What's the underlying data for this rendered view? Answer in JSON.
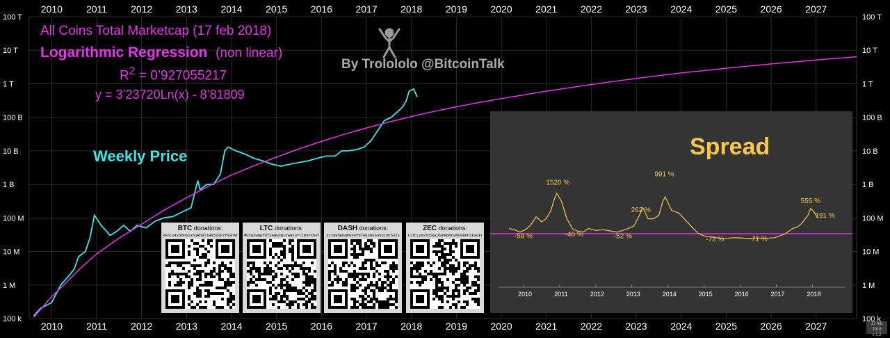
{
  "chart_data": [
    {
      "type": "line",
      "title_lines": [
        "All Coins Total Marketcap   (17 feb 2018)",
        "Logarithmic Regression",
        "(non linear)"
      ],
      "r_squared_prefix": "R",
      "r_squared_exp": "2",
      "r_squared_value": " = 0’927055217",
      "equation": "y = 3’23720Ln(x) - 8’81809",
      "credit": "By Trolololo  @BitcoinTalk",
      "weekly_label": "Weekly Price",
      "y_scale": "log",
      "y_ticks": [
        "100 k",
        "1 M",
        "10 M",
        "100 M",
        "1 B",
        "10 B",
        "100 B",
        "1 T",
        "10 T",
        "100 T"
      ],
      "y_tick_values": [
        100000.0,
        1000000.0,
        10000000.0,
        100000000.0,
        1000000000.0,
        10000000000.0,
        100000000000.0,
        1000000000000.0,
        10000000000000.0,
        100000000000000.0
      ],
      "x_ticks": [
        "2010",
        "2011",
        "2012",
        "2013",
        "2014",
        "2015",
        "2016",
        "2017",
        "2018",
        "2019",
        "2020",
        "2021",
        "2022",
        "2023",
        "2024",
        "2025",
        "2026",
        "2027"
      ],
      "x_range": [
        2009.5,
        2027.9
      ],
      "ylim": [
        100000.0,
        100000000000000.0
      ],
      "series": [
        {
          "color": "#3ee6e6",
          "x": [
            2009.6,
            2009.75,
            2010.0,
            2010.2,
            2010.4,
            2010.5,
            2010.6,
            2010.75,
            2010.85,
            2010.95,
            2011.1,
            2011.3,
            2011.45,
            2011.6,
            2011.75,
            2011.9,
            2012.1,
            2012.3,
            2012.5,
            2012.7,
            2012.9,
            2013.1,
            2013.25,
            2013.3,
            2013.45,
            2013.6,
            2013.75,
            2013.85,
            2013.92,
            2014.1,
            2014.3,
            2014.5,
            2014.7,
            2014.9,
            2015.1,
            2015.3,
            2015.5,
            2015.7,
            2015.9,
            2016.1,
            2016.3,
            2016.45,
            2016.6,
            2016.8,
            2016.95,
            2017.1,
            2017.25,
            2017.4,
            2017.55,
            2017.7,
            2017.8,
            2017.88,
            2017.95,
            2018.05,
            2018.13
          ],
          "y": [
            120000.0,
            200000.0,
            300000.0,
            1000000.0,
            2000000.0,
            3000000.0,
            7000000.0,
            10000000.0,
            25000000.0,
            120000000.0,
            60000000.0,
            30000000.0,
            40000000.0,
            60000000.0,
            40000000.0,
            60000000.0,
            50000000.0,
            80000000.0,
            100000000.0,
            110000000.0,
            150000000.0,
            200000000.0,
            1300000000.0,
            700000000.0,
            1000000000.0,
            1000000000.0,
            2000000000.0,
            10000000000.0,
            13000000000.0,
            10000000000.0,
            8000000000.0,
            6000000000.0,
            5000000000.0,
            4000000000.0,
            3500000000.0,
            4000000000.0,
            4500000000.0,
            5000000000.0,
            6000000000.0,
            7000000000.0,
            7000000000.0,
            10000000000.0,
            10000000000.0,
            11000000000.0,
            13000000000.0,
            20000000000.0,
            40000000000.0,
            80000000000.0,
            100000000000.0,
            150000000000.0,
            200000000000.0,
            300000000000.0,
            600000000000.0,
            700000000000.0,
            400000000000.0
          ]
        },
        {
          "color": "#e535e8",
          "x": [
            2009.6,
            2009.8,
            2010.0,
            2010.3,
            2010.6,
            2011.0,
            2011.5,
            2012.0,
            2012.5,
            2013.0,
            2013.5,
            2014.0,
            2014.5,
            2015.0,
            2015.5,
            2016.0,
            2016.5,
            2017.0,
            2017.5,
            2018.0,
            2018.5,
            2019.0,
            2019.5,
            2020.0,
            2021.0,
            2022.0,
            2023.0,
            2024.0,
            2025.0,
            2026.0,
            2027.0,
            2027.9
          ],
          "y": [
            110000.0,
            220000.0,
            450000.0,
            1100000.0,
            2800000.0,
            8500000.0,
            25000000.0,
            65000000.0,
            170000000.0,
            400000000.0,
            900000000.0,
            1900000000.0,
            3600000000.0,
            6500000000.0,
            11500000000.0,
            19000000000.0,
            31000000000.0,
            48000000000.0,
            72000000000.0,
            105000000000.0,
            150000000000.0,
            205000000000.0,
            275000000000.0,
            360000000000.0,
            600000000000.0,
            950000000000.0,
            1450000000000.0,
            2100000000000.0,
            2900000000000.0,
            3900000000000.0,
            5100000000000.0,
            6400000000000.0
          ]
        }
      ]
    },
    {
      "type": "line",
      "title": "Spread",
      "x_ticks": [
        "2010",
        "2011",
        "2012",
        "2013",
        "2014",
        "2015",
        "2016",
        "2017",
        "2018"
      ],
      "x_range": [
        2009.5,
        2018.8
      ],
      "annotations": [
        "1520 %",
        "991 %",
        "262 %",
        "555 %",
        "191 %",
        "-59 %",
        "-46 %",
        "-52 %",
        "-72 %",
        "-71 %"
      ],
      "series": [
        {
          "color": "#f6c84e",
          "x": [
            2009.6,
            2009.75,
            2009.9,
            2010.05,
            2010.2,
            2010.35,
            2010.5,
            2010.62,
            2010.75,
            2010.85,
            2010.92,
            2011.05,
            2011.2,
            2011.35,
            2011.5,
            2011.65,
            2011.8,
            2012.0,
            2012.2,
            2012.4,
            2012.6,
            2012.75,
            2012.9,
            2013.05,
            2013.2,
            2013.3,
            2013.45,
            2013.6,
            2013.75,
            2013.85,
            2013.92,
            2014.1,
            2014.3,
            2014.5,
            2014.7,
            2014.85,
            2015.0,
            2015.2,
            2015.4,
            2015.6,
            2015.8,
            2016.0,
            2016.2,
            2016.4,
            2016.6,
            2016.8,
            2016.95,
            2017.1,
            2017.25,
            2017.45,
            2017.6,
            2017.72,
            2017.8,
            2017.88,
            2017.95,
            2018.05,
            2018.13
          ],
          "y": [
            0.3,
            0.2,
            0.05,
            0.2,
            0.6,
            1.4,
            0.9,
            1.2,
            2.0,
            3.3,
            4.0,
            3.1,
            1.2,
            0.3,
            0.1,
            0.05,
            0.3,
            0.15,
            0.2,
            0.12,
            0.05,
            0.15,
            0.3,
            0.5,
            1.5,
            2.4,
            1.2,
            1.2,
            1.6,
            3.0,
            3.6,
            2.1,
            1.8,
            1.0,
            0.3,
            0.0,
            -0.3,
            -0.48,
            -0.6,
            -0.65,
            -0.55,
            -0.58,
            -0.65,
            -0.6,
            -0.62,
            -0.6,
            -0.55,
            -0.3,
            0.0,
            0.3,
            0.45,
            0.8,
            1.2,
            1.6,
            2.3,
            1.9,
            1.4
          ]
        }
      ]
    }
  ],
  "donations": [
    {
      "coin": "BTC",
      "label": "donations:",
      "address": "3F6Cu4x5mnp1xnURh8TiHN52DFzfGShNh"
    },
    {
      "coin": "LTC",
      "label": "donations:",
      "address": "MUtGZwqpfD7SAHwSQiVwGs3YtzmnFXhefTt"
    },
    {
      "coin": "DASH",
      "label": "donations:",
      "address": "Xcz8EhpmqPNX4fbTAEvW6Su5o1dU532s"
    },
    {
      "coin": "ZEC",
      "label": "donations:",
      "address": "t1TCLym7XtSQcZWnNoMoyNVG8hh2kaqkcv"
    }
  ],
  "version": "v 1.2",
  "version_date": "17 feb 2018"
}
